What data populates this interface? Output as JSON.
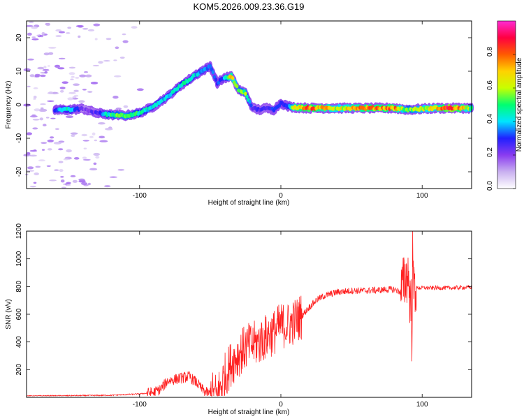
{
  "chart_data": [
    {
      "type": "heatmap",
      "title": "KOM5.2026.009.23.36.G19",
      "xlabel": "Height of straight line (km)",
      "ylabel": "Frequency (Hz)",
      "xlim": [
        -180,
        135
      ],
      "ylim": [
        -25,
        25
      ],
      "xticks": [
        -100,
        0,
        100
      ],
      "yticks": [
        -20,
        -10,
        0,
        10,
        20
      ],
      "colorbar": {
        "label": "Normalized spectral amplitude",
        "range": [
          0.0,
          1.0
        ],
        "ticks": [
          "0.0",
          "0.2",
          "0.4",
          "0.6",
          "0.8"
        ],
        "colors": [
          "#ffffff",
          "#c9b0f0",
          "#8a3cf0",
          "#2020ff",
          "#00e5ff",
          "#00ff70",
          "#c8ff00",
          "#ffd200",
          "#ff5a00",
          "#ff0040",
          "#ff2ad4"
        ]
      },
      "ridge": {
        "x": [
          -160,
          -150,
          -140,
          -130,
          -120,
          -110,
          -100,
          -90,
          -80,
          -70,
          -60,
          -50,
          -45,
          -40,
          -35,
          -30,
          -25,
          -20,
          -15,
          -10,
          -5,
          0,
          5,
          10,
          20,
          40,
          60,
          80,
          90,
          100,
          110,
          120,
          135
        ],
        "freq": [
          -1.5,
          -1.5,
          -1.2,
          -2.5,
          -3.0,
          -3.2,
          -2.5,
          -0.5,
          2.5,
          6.0,
          9.0,
          11.5,
          6.5,
          8.0,
          8.5,
          4.5,
          3.5,
          -1.0,
          -1.5,
          -1.0,
          -1.5,
          0.5,
          -0.5,
          -0.8,
          -1.0,
          -1.0,
          -1.0,
          -1.0,
          -1.5,
          -1.2,
          -1.0,
          -1.0,
          -1.0
        ],
        "amp": [
          0.3,
          0.45,
          0.2,
          0.25,
          0.5,
          0.55,
          0.45,
          0.4,
          0.4,
          0.45,
          0.4,
          0.35,
          0.3,
          0.35,
          0.7,
          0.5,
          0.55,
          0.25,
          0.25,
          0.25,
          0.3,
          0.3,
          0.35,
          0.7,
          0.8,
          0.6,
          0.75,
          0.75,
          0.5,
          0.6,
          0.65,
          0.9,
          0.55
        ]
      }
    },
    {
      "type": "line",
      "xlabel": "Height of straight line (km)",
      "ylabel": "SNR (v/v)",
      "xlim": [
        -180,
        135
      ],
      "ylim": [
        0,
        1200
      ],
      "xticks": [
        -100,
        0,
        100
      ],
      "yticks": [
        200,
        400,
        600,
        800,
        1000,
        1200
      ],
      "series": [
        {
          "name": "SNR",
          "color": "#ff2020",
          "x": [
            -180,
            -150,
            -120,
            -100,
            -90,
            -85,
            -80,
            -75,
            -70,
            -65,
            -60,
            -55,
            -50,
            -45,
            -40,
            -35,
            -30,
            -25,
            -20,
            -15,
            -10,
            -5,
            0,
            5,
            10,
            15,
            20,
            25,
            30,
            40,
            50,
            60,
            70,
            80,
            85,
            88,
            90,
            92,
            94,
            96,
            100,
            110,
            120,
            135
          ],
          "y": [
            10,
            12,
            15,
            25,
            35,
            60,
            120,
            130,
            140,
            150,
            110,
            50,
            20,
            15,
            150,
            250,
            310,
            360,
            380,
            400,
            440,
            470,
            520,
            520,
            550,
            590,
            650,
            700,
            730,
            760,
            770,
            770,
            775,
            780,
            760,
            850,
            900,
            650,
            800,
            790,
            790,
            790,
            790,
            795
          ]
        }
      ]
    }
  ]
}
